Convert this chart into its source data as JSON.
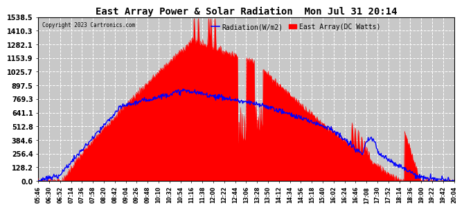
{
  "title": "East Array Power & Solar Radiation  Mon Jul 31 20:14",
  "copyright": "Copyright 2023 Cartronics.com",
  "legend_radiation": "Radiation(W/m2)",
  "legend_east": "East Array(DC Watts)",
  "ylabel_values": [
    0.0,
    128.2,
    256.4,
    384.6,
    512.8,
    641.1,
    769.3,
    897.5,
    1025.7,
    1153.9,
    1282.1,
    1410.3,
    1538.5
  ],
  "ymax": 1538.5,
  "ymin": 0.0,
  "bg_color": "#ffffff",
  "plot_bg_color": "#c8c8c8",
  "grid_color": "#ffffff",
  "radiation_color": "#0000ff",
  "east_array_color": "#ff0000",
  "east_array_fill": "#ff0000",
  "x_tick_labels": [
    "05:46",
    "06:30",
    "06:52",
    "07:14",
    "07:36",
    "07:58",
    "08:20",
    "08:42",
    "09:04",
    "09:26",
    "09:48",
    "10:10",
    "10:32",
    "10:54",
    "11:16",
    "11:38",
    "12:00",
    "12:22",
    "12:44",
    "13:06",
    "13:28",
    "13:50",
    "14:12",
    "14:34",
    "14:56",
    "15:18",
    "15:40",
    "16:02",
    "16:24",
    "16:46",
    "17:08",
    "17:30",
    "17:52",
    "18:14",
    "18:36",
    "19:00",
    "19:22",
    "19:42",
    "20:04"
  ]
}
